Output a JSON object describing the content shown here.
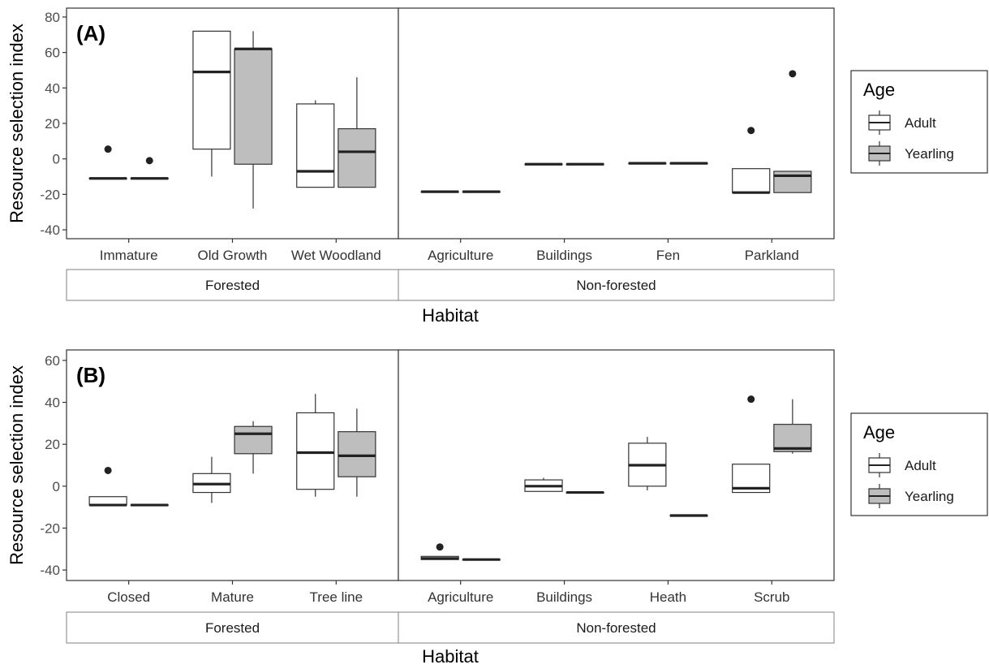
{
  "legend": {
    "title": "Age",
    "entries": [
      {
        "label": "Adult",
        "fill": "#ffffff"
      },
      {
        "label": "Yearling",
        "fill": "#bebebe"
      }
    ]
  },
  "colors": {
    "adult_fill": "#ffffff",
    "yearling_fill": "#bebebe",
    "stroke": "#333333",
    "median": "#222222"
  },
  "chart_data": [
    {
      "type": "box",
      "tag": "(A)",
      "ylabel": "Resource selection index",
      "xlabel": "Habitat",
      "ylim": [
        -45,
        85
      ],
      "yticks": [
        -40,
        -20,
        0,
        20,
        40,
        60,
        80
      ],
      "grid": false,
      "legend_position": "right",
      "facets": [
        {
          "label": "Forested",
          "categories": [
            {
              "name": "Immature",
              "adult": {
                "min": -11,
                "q1": -11,
                "median": -11,
                "q3": -11,
                "max": -11,
                "outliers": [
                  5.5
                ]
              },
              "yearling": {
                "min": -11,
                "q1": -11,
                "median": -11,
                "q3": -11,
                "max": -11,
                "outliers": [
                  -1
                ]
              }
            },
            {
              "name": "Old Growth",
              "adult": {
                "min": -10,
                "q1": 5.5,
                "median": 49,
                "q3": 72,
                "max": 72,
                "outliers": []
              },
              "yearling": {
                "min": -28,
                "q1": -3,
                "median": 62,
                "q3": 62,
                "max": 72,
                "outliers": []
              }
            },
            {
              "name": "Wet Woodland",
              "adult": {
                "min": -16,
                "q1": -16,
                "median": -7,
                "q3": 31,
                "max": 33,
                "outliers": []
              },
              "yearling": {
                "min": -16,
                "q1": -16,
                "median": 4,
                "q3": 17,
                "max": 46,
                "outliers": []
              }
            }
          ]
        },
        {
          "label": "Non-forested",
          "categories": [
            {
              "name": "Agriculture",
              "adult": {
                "min": -18.5,
                "q1": -18.5,
                "median": -18.5,
                "q3": -18.5,
                "max": -18.5,
                "outliers": []
              },
              "yearling": {
                "min": -18.5,
                "q1": -18.5,
                "median": -18.5,
                "q3": -18.5,
                "max": -18.5,
                "outliers": []
              }
            },
            {
              "name": "Buildings",
              "adult": {
                "min": -3,
                "q1": -3,
                "median": -3,
                "q3": -3,
                "max": -3,
                "outliers": []
              },
              "yearling": {
                "min": -3,
                "q1": -3,
                "median": -3,
                "q3": -3,
                "max": -3,
                "outliers": []
              }
            },
            {
              "name": "Fen",
              "adult": {
                "min": -2.5,
                "q1": -2.5,
                "median": -2.5,
                "q3": -2.5,
                "max": -2.5,
                "outliers": []
              },
              "yearling": {
                "min": -2.5,
                "q1": -2.5,
                "median": -2.5,
                "q3": -2.5,
                "max": -2.5,
                "outliers": []
              }
            },
            {
              "name": "Parkland",
              "adult": {
                "min": -19,
                "q1": -19,
                "median": -19,
                "q3": -5.5,
                "max": -5.5,
                "outliers": [
                  16
                ]
              },
              "yearling": {
                "min": -19,
                "q1": -19,
                "median": -9.5,
                "q3": -7,
                "max": -7,
                "outliers": [
                  48
                ]
              }
            }
          ]
        }
      ]
    },
    {
      "type": "box",
      "tag": "(B)",
      "ylabel": "Resource selection index",
      "xlabel": "Habitat",
      "ylim": [
        -45,
        65
      ],
      "yticks": [
        -40,
        -20,
        0,
        20,
        40,
        60
      ],
      "grid": false,
      "legend_position": "right",
      "facets": [
        {
          "label": "Forested",
          "categories": [
            {
              "name": "Closed",
              "adult": {
                "min": -9,
                "q1": -9,
                "median": -9,
                "q3": -5,
                "max": -5,
                "outliers": [
                  7.5
                ]
              },
              "yearling": {
                "min": -9,
                "q1": -9,
                "median": -9,
                "q3": -9,
                "max": -9,
                "outliers": []
              }
            },
            {
              "name": "Mature",
              "adult": {
                "min": -8,
                "q1": -3,
                "median": 1,
                "q3": 6,
                "max": 14,
                "outliers": []
              },
              "yearling": {
                "min": 6,
                "q1": 15.5,
                "median": 25,
                "q3": 28.5,
                "max": 31,
                "outliers": []
              }
            },
            {
              "name": "Tree line",
              "adult": {
                "min": -5,
                "q1": -1.5,
                "median": 16,
                "q3": 35,
                "max": 44,
                "outliers": []
              },
              "yearling": {
                "min": -5,
                "q1": 4.5,
                "median": 14.5,
                "q3": 26,
                "max": 37,
                "outliers": []
              }
            }
          ]
        },
        {
          "label": "Non-forested",
          "categories": [
            {
              "name": "Agriculture",
              "adult": {
                "min": -35,
                "q1": -35,
                "median": -34.5,
                "q3": -33.5,
                "max": -33.5,
                "outliers": [
                  -29
                ]
              },
              "yearling": {
                "min": -35,
                "q1": -35,
                "median": -35,
                "q3": -35,
                "max": -35,
                "outliers": []
              }
            },
            {
              "name": "Buildings",
              "adult": {
                "min": -2.5,
                "q1": -2.5,
                "median": 0,
                "q3": 3,
                "max": 4,
                "outliers": []
              },
              "yearling": {
                "min": -3,
                "q1": -3,
                "median": -3,
                "q3": -3,
                "max": -3,
                "outliers": []
              }
            },
            {
              "name": "Heath",
              "adult": {
                "min": -2,
                "q1": 0,
                "median": 10,
                "q3": 20.5,
                "max": 23.5,
                "outliers": []
              },
              "yearling": {
                "min": -14,
                "q1": -14,
                "median": -14,
                "q3": -14,
                "max": -14,
                "outliers": []
              }
            },
            {
              "name": "Scrub",
              "adult": {
                "min": -3,
                "q1": -3,
                "median": -1,
                "q3": 10.5,
                "max": 10.5,
                "outliers": [
                  41.5
                ]
              },
              "yearling": {
                "min": 15.5,
                "q1": 16.5,
                "median": 18,
                "q3": 29.5,
                "max": 41.5,
                "outliers": []
              }
            }
          ]
        }
      ]
    }
  ]
}
